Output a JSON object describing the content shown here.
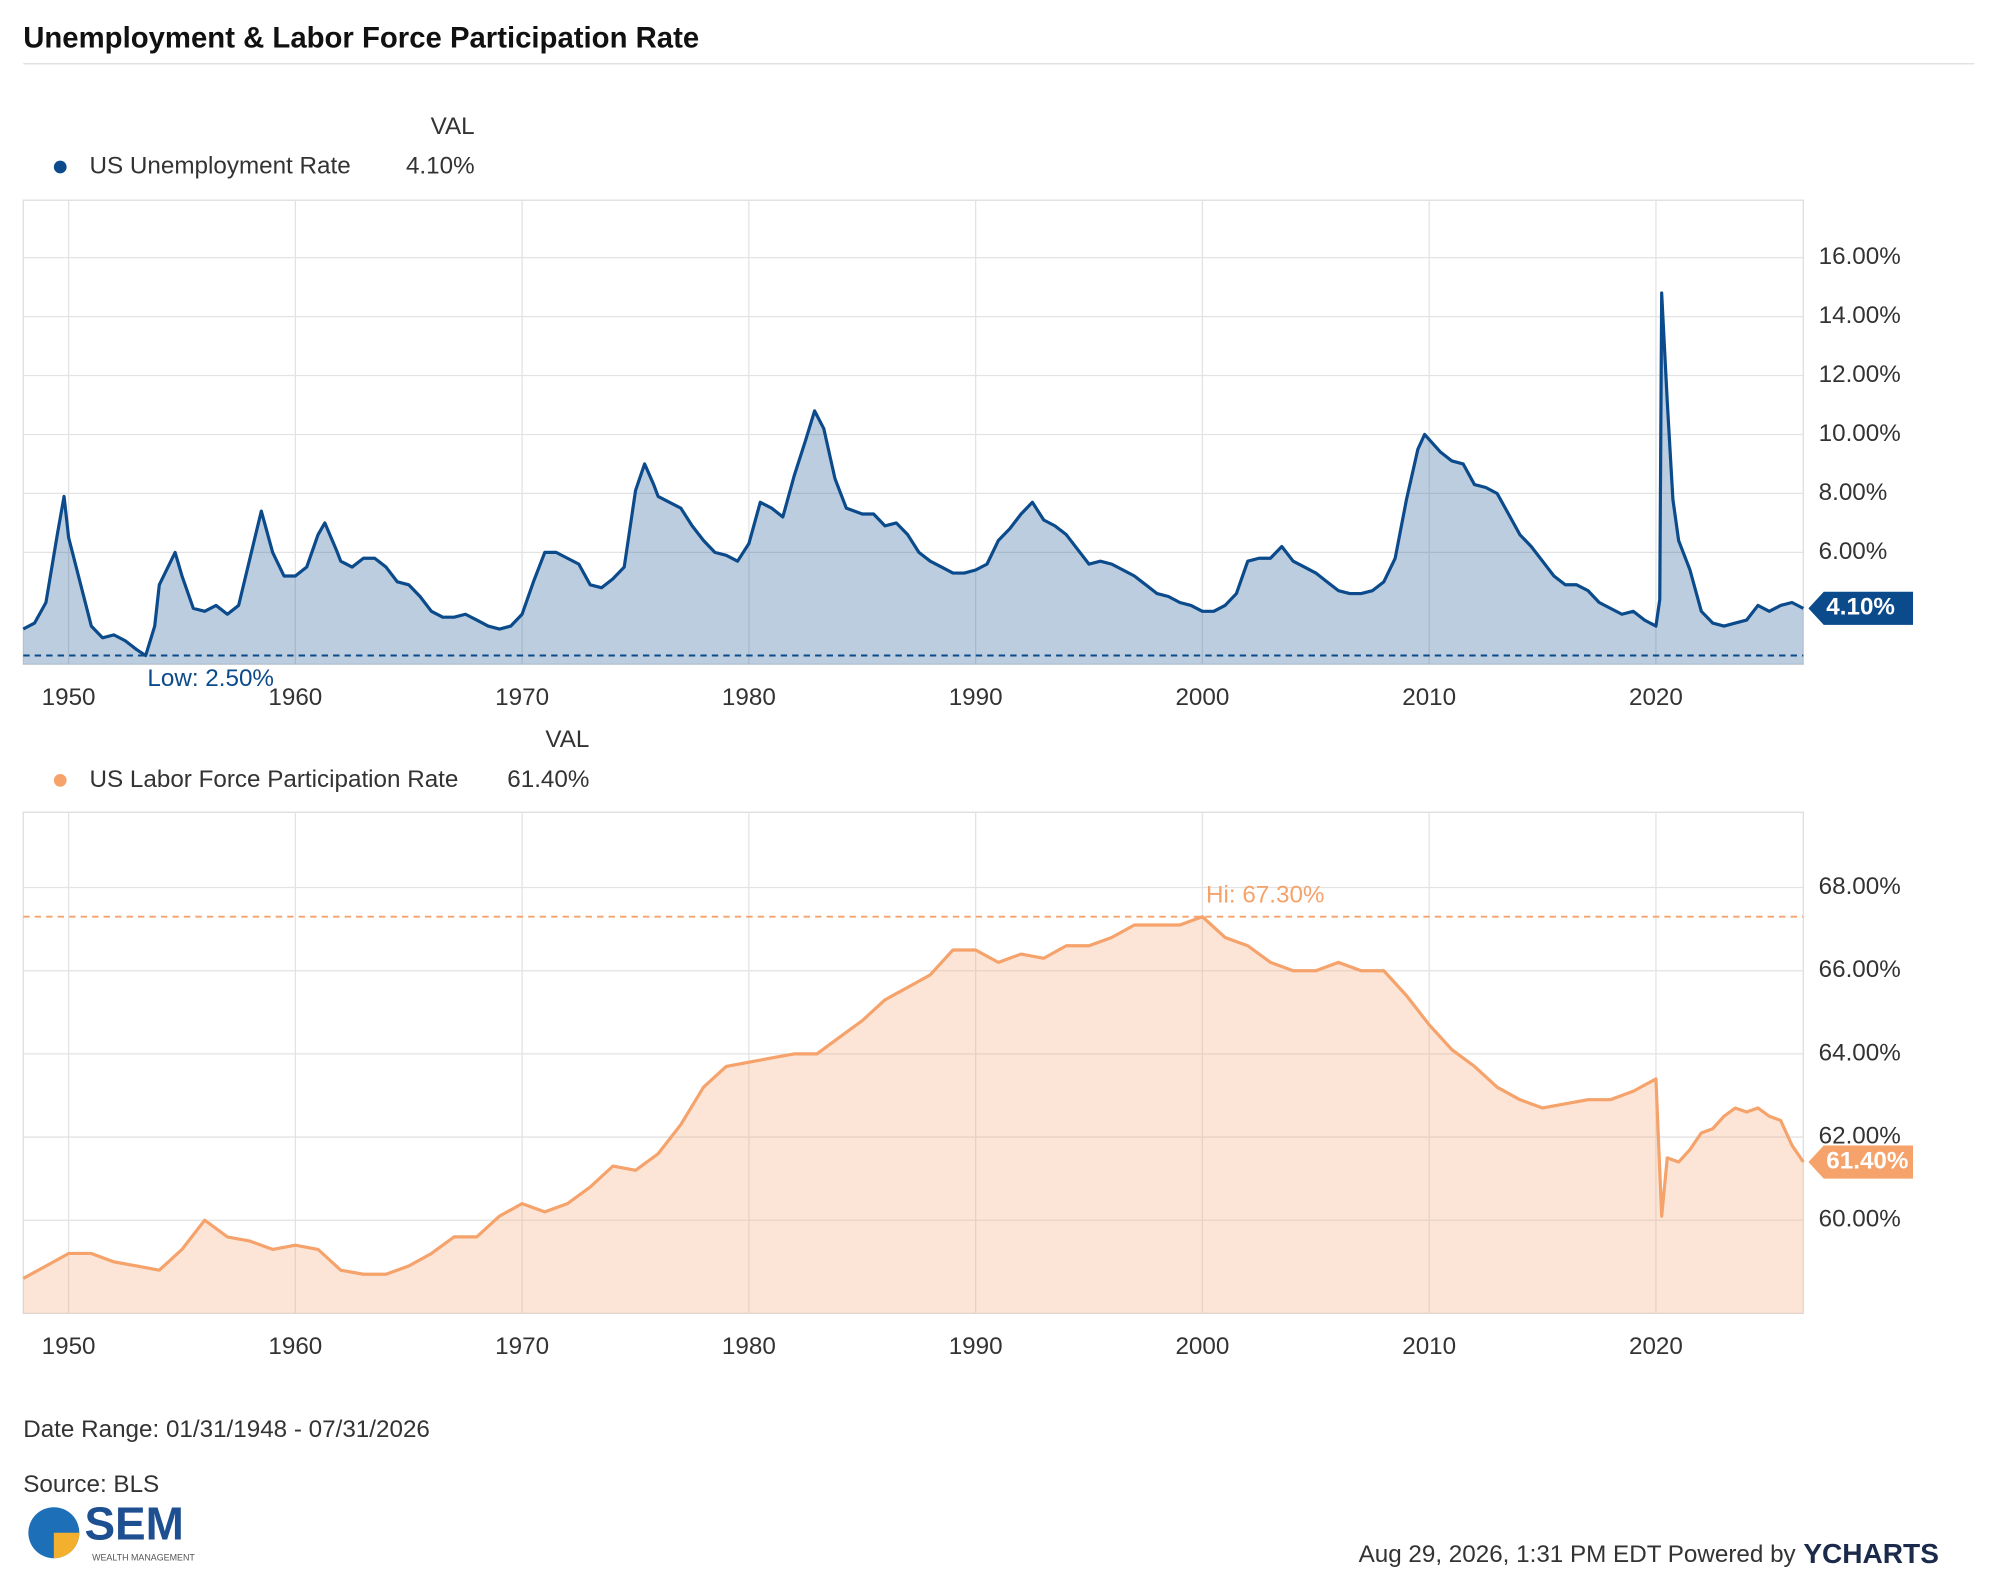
{
  "title": "Unemployment & Labor Force Participation Rate",
  "chart_data": [
    {
      "type": "area",
      "legend_header": "VAL",
      "grid": true,
      "x": [
        1948.0,
        1948.5,
        1949.0,
        1949.5,
        1949.8,
        1950.0,
        1950.5,
        1951.0,
        1951.5,
        1952.0,
        1952.5,
        1953.0,
        1953.4,
        1953.8,
        1954.0,
        1954.7,
        1955.0,
        1955.5,
        1956.0,
        1956.5,
        1957.0,
        1957.5,
        1958.0,
        1958.5,
        1959.0,
        1959.5,
        1960.0,
        1960.5,
        1961.0,
        1961.3,
        1961.8,
        1962.0,
        1962.5,
        1963.0,
        1963.5,
        1964.0,
        1964.5,
        1965.0,
        1965.5,
        1966.0,
        1966.5,
        1967.0,
        1967.5,
        1968.0,
        1968.5,
        1969.0,
        1969.5,
        1970.0,
        1970.5,
        1971.0,
        1971.5,
        1972.0,
        1972.5,
        1973.0,
        1973.5,
        1974.0,
        1974.5,
        1975.0,
        1975.4,
        1975.8,
        1976.0,
        1976.5,
        1977.0,
        1977.5,
        1978.0,
        1978.5,
        1979.0,
        1979.5,
        1980.0,
        1980.5,
        1981.0,
        1981.5,
        1982.0,
        1982.5,
        1982.9,
        1983.3,
        1983.8,
        1984.3,
        1985.0,
        1985.5,
        1986.0,
        1986.5,
        1987.0,
        1987.5,
        1988.0,
        1988.5,
        1989.0,
        1989.5,
        1990.0,
        1990.5,
        1991.0,
        1991.5,
        1992.0,
        1992.5,
        1993.0,
        1993.5,
        1994.0,
        1994.5,
        1995.0,
        1995.5,
        1996.0,
        1996.5,
        1997.0,
        1997.5,
        1998.0,
        1998.5,
        1999.0,
        1999.5,
        2000.0,
        2000.5,
        2001.0,
        2001.5,
        2002.0,
        2002.5,
        2003.0,
        2003.5,
        2004.0,
        2004.5,
        2005.0,
        2005.5,
        2006.0,
        2006.5,
        2007.0,
        2007.5,
        2008.0,
        2008.5,
        2009.0,
        2009.5,
        2009.8,
        2010.5,
        2011.0,
        2011.5,
        2012.0,
        2012.5,
        2013.0,
        2013.5,
        2014.0,
        2014.5,
        2015.0,
        2015.5,
        2016.0,
        2016.5,
        2017.0,
        2017.5,
        2018.0,
        2018.5,
        2019.0,
        2019.5,
        2020.0,
        2020.17,
        2020.25,
        2020.5,
        2020.75,
        2021.0,
        2021.5,
        2022.0,
        2022.5,
        2023.0,
        2023.5,
        2024.0,
        2024.5,
        2025.0,
        2025.5,
        2026.0,
        2026.5
      ],
      "series": [
        {
          "name": "US Unemployment Rate",
          "color": "#0b4a8b",
          "current": {
            "value": 4.1,
            "label": "4.10%"
          },
          "values": [
            3.4,
            3.6,
            4.3,
            6.6,
            7.9,
            6.5,
            5.0,
            3.5,
            3.1,
            3.2,
            3.0,
            2.7,
            2.5,
            3.5,
            4.9,
            6.0,
            5.2,
            4.1,
            4.0,
            4.2,
            3.9,
            4.2,
            5.8,
            7.4,
            6.0,
            5.2,
            5.2,
            5.5,
            6.6,
            7.0,
            6.1,
            5.7,
            5.5,
            5.8,
            5.8,
            5.5,
            5.0,
            4.9,
            4.5,
            4.0,
            3.8,
            3.8,
            3.9,
            3.7,
            3.5,
            3.4,
            3.5,
            3.9,
            5.0,
            6.0,
            6.0,
            5.8,
            5.6,
            4.9,
            4.8,
            5.1,
            5.5,
            8.1,
            9.0,
            8.3,
            7.9,
            7.7,
            7.5,
            6.9,
            6.4,
            6.0,
            5.9,
            5.7,
            6.3,
            7.7,
            7.5,
            7.2,
            8.6,
            9.8,
            10.8,
            10.2,
            8.5,
            7.5,
            7.3,
            7.3,
            6.9,
            7.0,
            6.6,
            6.0,
            5.7,
            5.5,
            5.3,
            5.3,
            5.4,
            5.6,
            6.4,
            6.8,
            7.3,
            7.7,
            7.1,
            6.9,
            6.6,
            6.1,
            5.6,
            5.7,
            5.6,
            5.4,
            5.2,
            4.9,
            4.6,
            4.5,
            4.3,
            4.2,
            4.0,
            4.0,
            4.2,
            4.6,
            5.7,
            5.8,
            5.8,
            6.2,
            5.7,
            5.5,
            5.3,
            5.0,
            4.7,
            4.6,
            4.6,
            4.7,
            5.0,
            5.8,
            7.8,
            9.5,
            10.0,
            9.4,
            9.1,
            9.0,
            8.3,
            8.2,
            8.0,
            7.3,
            6.6,
            6.2,
            5.7,
            5.2,
            4.9,
            4.9,
            4.7,
            4.3,
            4.1,
            3.9,
            4.0,
            3.7,
            3.5,
            4.4,
            14.8,
            11.1,
            7.8,
            6.4,
            5.4,
            4.0,
            3.6,
            3.5,
            3.6,
            3.7,
            4.2,
            4.0,
            4.2,
            4.3,
            4.1
          ]
        }
      ],
      "low": {
        "value": 2.5,
        "label": "Low: 2.50%"
      },
      "xlim": [
        1948,
        2026.5
      ],
      "xticks": [
        1950,
        1960,
        1970,
        1980,
        1990,
        2000,
        2010,
        2020
      ],
      "ylim": [
        2.2,
        17.95
      ],
      "yticks": [
        {
          "value": 6,
          "label": "6.00%"
        },
        {
          "value": 8,
          "label": "8.00%"
        },
        {
          "value": 10,
          "label": "10.00%"
        },
        {
          "value": 12,
          "label": "12.00%"
        },
        {
          "value": 14,
          "label": "14.00%"
        },
        {
          "value": 16,
          "label": "16.00%"
        }
      ]
    },
    {
      "type": "area",
      "legend_header": "VAL",
      "grid": true,
      "x": [
        1948,
        1949,
        1950,
        1951,
        1952,
        1953,
        1954,
        1955,
        1956,
        1957,
        1958,
        1959,
        1960,
        1961,
        1962,
        1963,
        1964,
        1965,
        1966,
        1967,
        1968,
        1969,
        1970,
        1971,
        1972,
        1973,
        1974,
        1975,
        1976,
        1977,
        1978,
        1979,
        1980,
        1981,
        1982,
        1983,
        1984,
        1985,
        1986,
        1987,
        1988,
        1989,
        1990,
        1991,
        1992,
        1993,
        1994,
        1995,
        1996,
        1997,
        1998,
        1999,
        2000,
        2001,
        2002,
        2003,
        2004,
        2005,
        2006,
        2007,
        2008,
        2009,
        2010,
        2011,
        2012,
        2013,
        2014,
        2015,
        2016,
        2017,
        2018,
        2019,
        2020.0,
        2020.25,
        2020.5,
        2021,
        2021.5,
        2022,
        2022.5,
        2023,
        2023.5,
        2024,
        2024.5,
        2025,
        2025.5,
        2026,
        2026.5
      ],
      "series": [
        {
          "name": "US Labor Force Participation Rate",
          "color": "#f5a26b",
          "current": {
            "value": 61.4,
            "label": "61.40%"
          },
          "values": [
            58.6,
            58.9,
            59.2,
            59.2,
            59.0,
            58.9,
            58.8,
            59.3,
            60.0,
            59.6,
            59.5,
            59.3,
            59.4,
            59.3,
            58.8,
            58.7,
            58.7,
            58.9,
            59.2,
            59.6,
            59.6,
            60.1,
            60.4,
            60.2,
            60.4,
            60.8,
            61.3,
            61.2,
            61.6,
            62.3,
            63.2,
            63.7,
            63.8,
            63.9,
            64.0,
            64.0,
            64.4,
            64.8,
            65.3,
            65.6,
            65.9,
            66.5,
            66.5,
            66.2,
            66.4,
            66.3,
            66.6,
            66.6,
            66.8,
            67.1,
            67.1,
            67.1,
            67.3,
            66.8,
            66.6,
            66.2,
            66.0,
            66.0,
            66.2,
            66.0,
            66.0,
            65.4,
            64.7,
            64.1,
            63.7,
            63.2,
            62.9,
            62.7,
            62.8,
            62.9,
            62.9,
            63.1,
            63.4,
            60.1,
            61.5,
            61.4,
            61.7,
            62.1,
            62.2,
            62.5,
            62.7,
            62.6,
            62.7,
            62.5,
            62.4,
            61.8,
            61.4
          ]
        }
      ],
      "high": {
        "value": 67.3,
        "label": "Hi: 67.30%"
      },
      "xlim": [
        1948,
        2026.5
      ],
      "xticks": [
        1950,
        1960,
        1970,
        1980,
        1990,
        2000,
        2010,
        2020
      ],
      "ylim": [
        57.76,
        69.81
      ],
      "yticks": [
        {
          "value": 60,
          "label": "60.00%"
        },
        {
          "value": 62,
          "label": "62.00%"
        },
        {
          "value": 64,
          "label": "64.00%"
        },
        {
          "value": 66,
          "label": "66.00%"
        },
        {
          "value": 68,
          "label": "68.00%"
        }
      ]
    }
  ],
  "footer": {
    "date_range": "Date Range: 01/31/1948 - 07/31/2026",
    "source": "Source: BLS",
    "timestamp": "Aug 29, 2026, 1:31 PM EDT Powered by",
    "brand": "YCHARTS"
  },
  "logo": {
    "name": "SEM",
    "tagline": "WEALTH MANAGEMENT"
  }
}
